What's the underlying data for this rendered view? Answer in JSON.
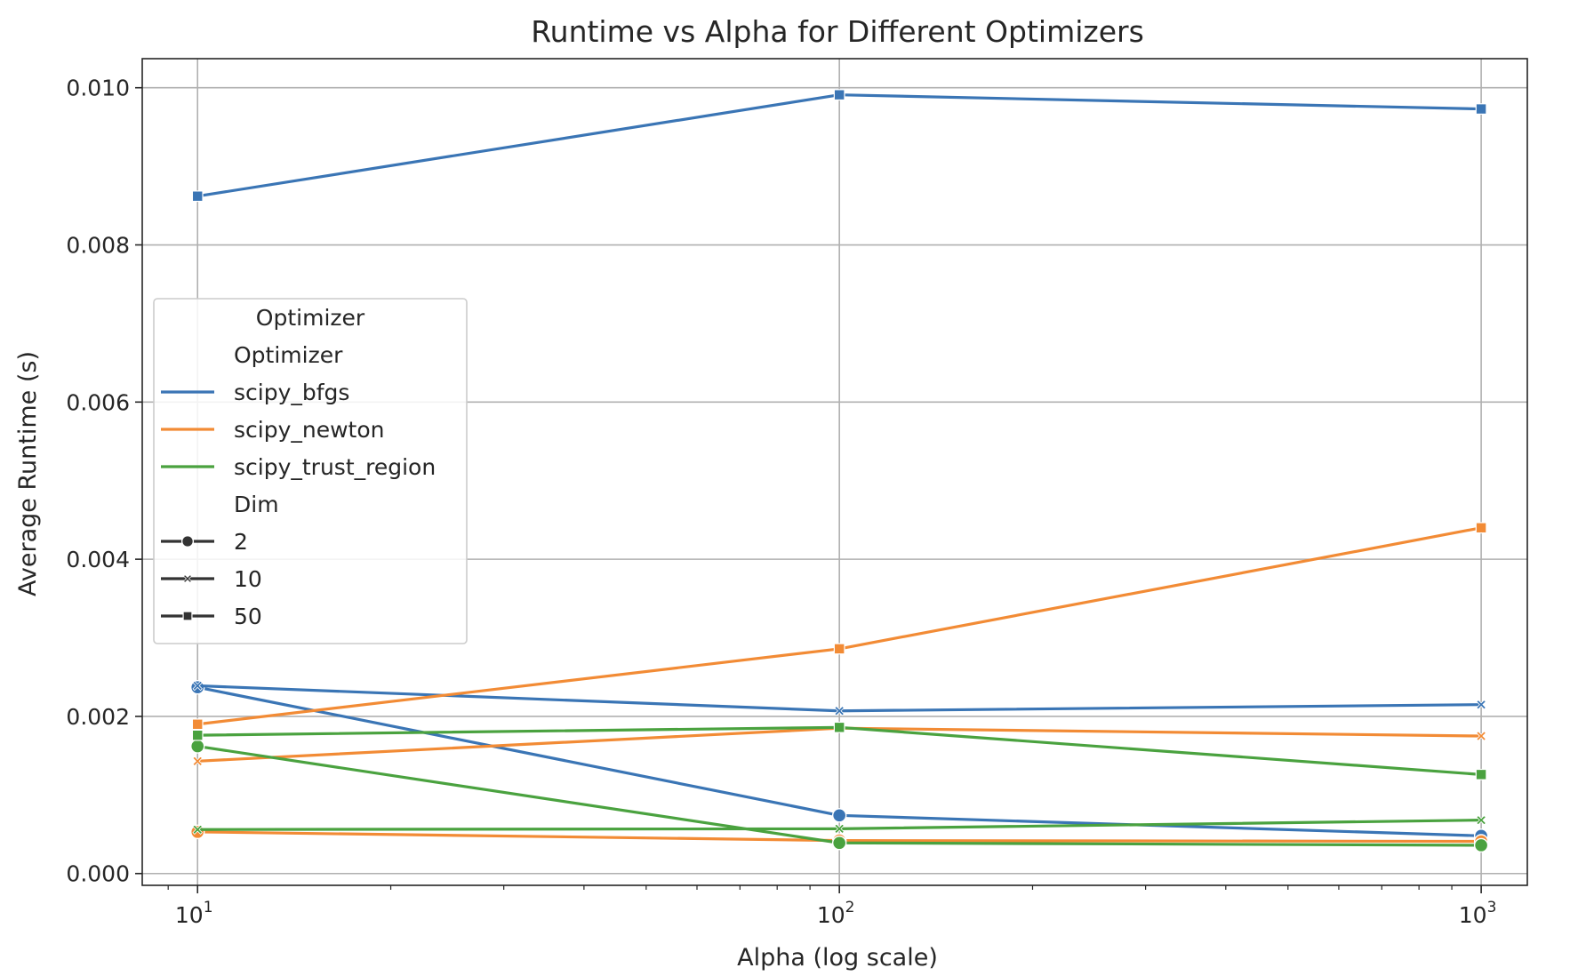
{
  "chart_data": {
    "type": "line",
    "title": "Runtime vs Alpha for Different Optimizers",
    "xlabel": "Alpha (log scale)",
    "ylabel": "Average Runtime (s)",
    "x_scale": "log",
    "x": [
      10,
      100,
      1000
    ],
    "x_tick_labels": [
      {
        "base": "10",
        "exp": "1"
      },
      {
        "base": "10",
        "exp": "2"
      },
      {
        "base": "10",
        "exp": "3"
      }
    ],
    "xlim": [
      8.2,
      1180
    ],
    "ylim": [
      -0.00015,
      0.01037
    ],
    "y_ticks": [
      0.0,
      0.002,
      0.004,
      0.006,
      0.008,
      0.01
    ],
    "y_tick_labels": [
      "0.000",
      "0.002",
      "0.004",
      "0.006",
      "0.008",
      "0.010"
    ],
    "grid": true,
    "legend": {
      "placement": "center-left",
      "title": "Optimizer",
      "hue_header": "Optimizer",
      "style_header": "Dim",
      "hue_entries": [
        {
          "label": "scipy_bfgs",
          "color": "#3a75b5"
        },
        {
          "label": "scipy_newton",
          "color": "#f28b35"
        },
        {
          "label": "scipy_trust_region",
          "color": "#4aa23f"
        }
      ],
      "style_entries": [
        {
          "label": "2",
          "marker": "circle"
        },
        {
          "label": "10",
          "marker": "x"
        },
        {
          "label": "50",
          "marker": "square"
        }
      ]
    },
    "series": [
      {
        "optimizer": "scipy_bfgs",
        "dim": "2",
        "marker": "circle",
        "color": "#3a75b5",
        "values": [
          0.00237,
          0.00074,
          0.00048
        ]
      },
      {
        "optimizer": "scipy_bfgs",
        "dim": "10",
        "marker": "x",
        "color": "#3a75b5",
        "values": [
          0.00239,
          0.00207,
          0.00215
        ]
      },
      {
        "optimizer": "scipy_bfgs",
        "dim": "50",
        "marker": "square",
        "color": "#3a75b5",
        "values": [
          0.00862,
          0.00991,
          0.00973
        ]
      },
      {
        "optimizer": "scipy_newton",
        "dim": "2",
        "marker": "circle",
        "color": "#f28b35",
        "values": [
          0.00053,
          0.00042,
          0.00041
        ]
      },
      {
        "optimizer": "scipy_newton",
        "dim": "10",
        "marker": "x",
        "color": "#f28b35",
        "values": [
          0.00143,
          0.00185,
          0.00175
        ]
      },
      {
        "optimizer": "scipy_newton",
        "dim": "50",
        "marker": "square",
        "color": "#f28b35",
        "values": [
          0.0019,
          0.00286,
          0.0044
        ]
      },
      {
        "optimizer": "scipy_trust_region",
        "dim": "2",
        "marker": "circle",
        "color": "#4aa23f",
        "values": [
          0.00162,
          0.00039,
          0.00036
        ]
      },
      {
        "optimizer": "scipy_trust_region",
        "dim": "10",
        "marker": "x",
        "color": "#4aa23f",
        "values": [
          0.00056,
          0.00057,
          0.00068
        ]
      },
      {
        "optimizer": "scipy_trust_region",
        "dim": "50",
        "marker": "square",
        "color": "#4aa23f",
        "values": [
          0.00176,
          0.00186,
          0.00126
        ]
      }
    ]
  }
}
